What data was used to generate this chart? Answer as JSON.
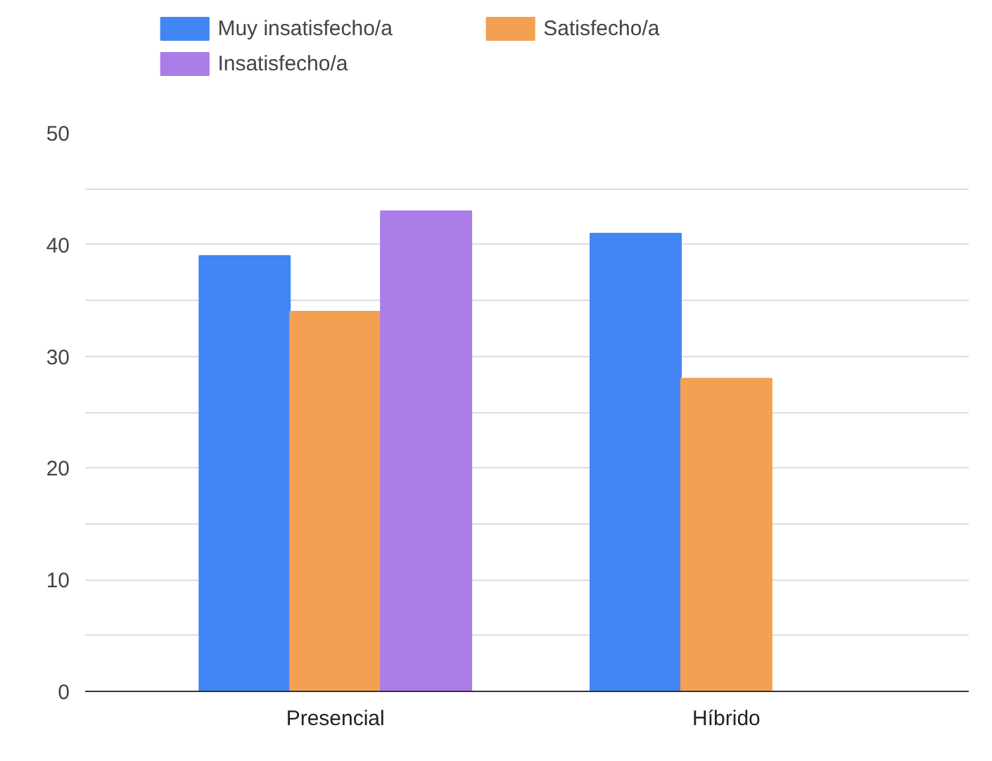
{
  "chart_data": {
    "type": "bar",
    "categories": [
      "Presencial",
      "Híbrido"
    ],
    "series": [
      {
        "name": "Muy insatisfecho/a",
        "color": "#4285f4",
        "values": [
          39,
          41
        ]
      },
      {
        "name": "Satisfecho/a",
        "color": "#f4a052",
        "values": [
          34,
          28
        ]
      },
      {
        "name": "Insatisfecho/a",
        "color": "#ab7de6",
        "values": [
          43,
          null
        ]
      }
    ],
    "ylim": [
      0,
      50
    ],
    "yticks": [
      0,
      {
        "value": 5,
        "label": null
      },
      10,
      {
        "value": 15,
        "label": null
      },
      20,
      {
        "value": 25,
        "label": null
      },
      30,
      {
        "value": 35,
        "label": null
      },
      40,
      {
        "value": 45,
        "label": null
      },
      50
    ],
    "grid": "y",
    "legend": "top left"
  }
}
